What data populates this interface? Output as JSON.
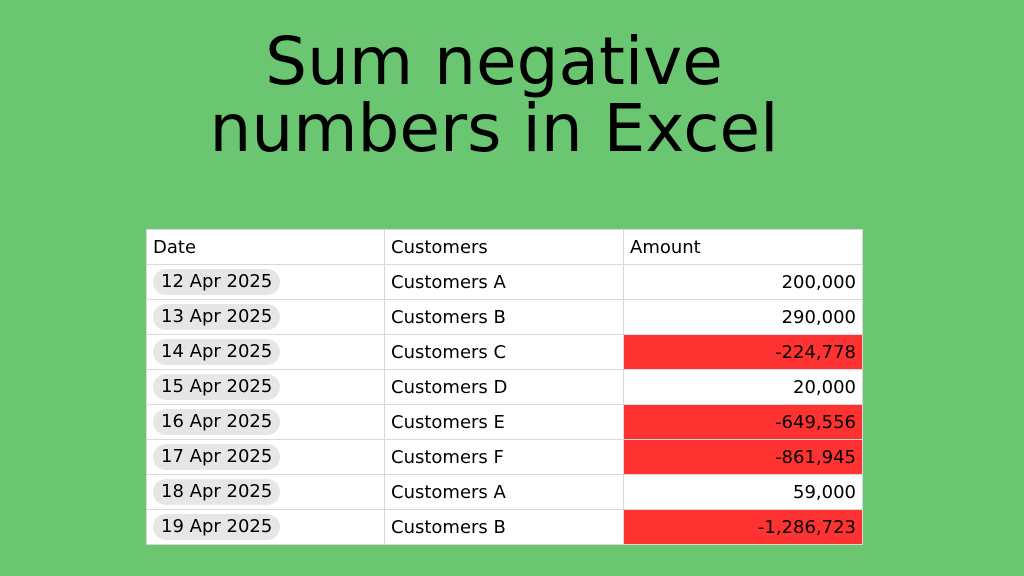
{
  "title": {
    "line1": "Sum negative",
    "line2": "numbers in Excel"
  },
  "colors": {
    "background": "#6ac670",
    "negative_highlight": "#ff3232",
    "date_chip": "#e6e6e6"
  },
  "table": {
    "headers": [
      "Date",
      "Customers",
      "Amount"
    ],
    "rows": [
      {
        "date": "12 Apr 2025",
        "customer": "Customers A",
        "amount": "200,000",
        "negative": false
      },
      {
        "date": "13 Apr 2025",
        "customer": "Customers B",
        "amount": "290,000",
        "negative": false
      },
      {
        "date": "14 Apr 2025",
        "customer": "Customers C",
        "amount": "-224,778",
        "negative": true
      },
      {
        "date": "15 Apr 2025",
        "customer": "Customers D",
        "amount": "20,000",
        "negative": false
      },
      {
        "date": "16 Apr 2025",
        "customer": "Customers E",
        "amount": "-649,556",
        "negative": true
      },
      {
        "date": "17 Apr 2025",
        "customer": "Customers F",
        "amount": "-861,945",
        "negative": true
      },
      {
        "date": "18 Apr 2025",
        "customer": "Customers A",
        "amount": "59,000",
        "negative": false
      },
      {
        "date": "19 Apr 2025",
        "customer": "Customers B",
        "amount": "-1,286,723",
        "negative": true
      }
    ]
  }
}
